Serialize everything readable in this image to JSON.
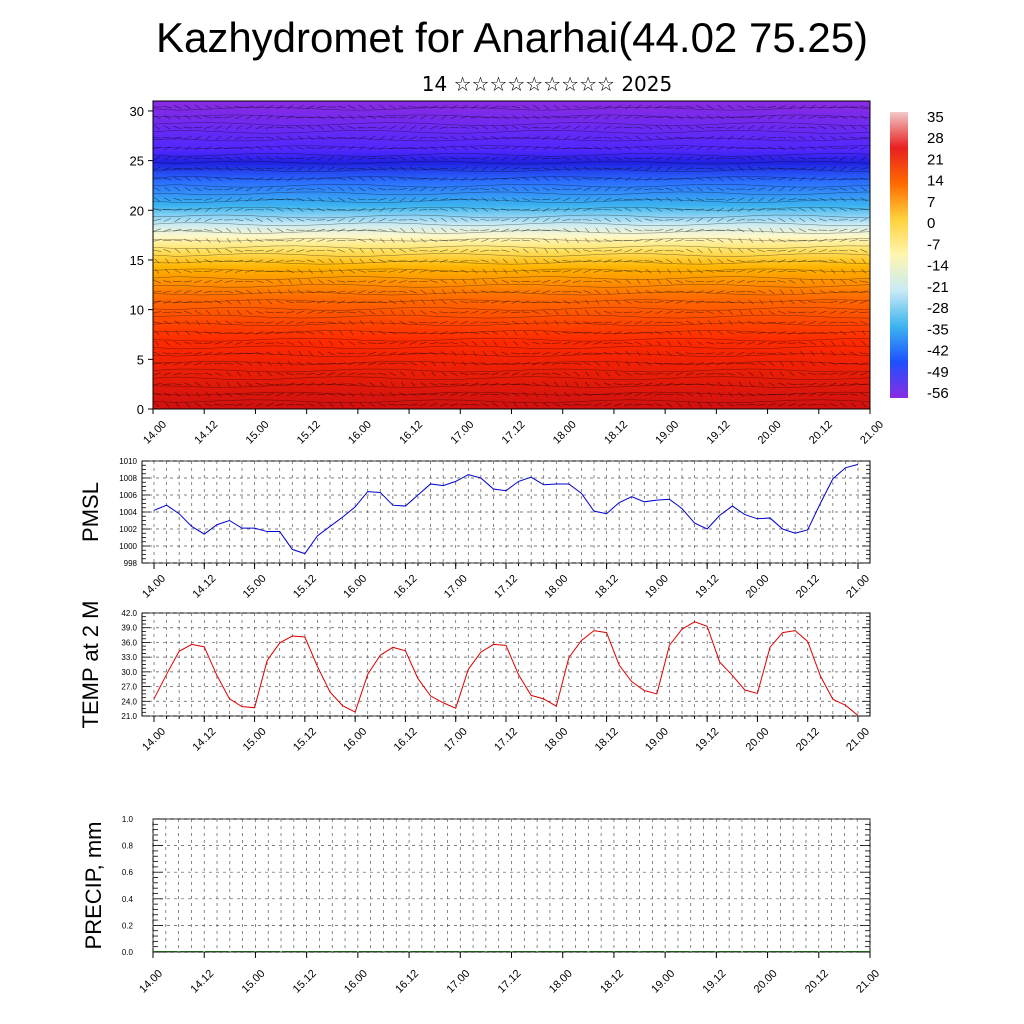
{
  "title": "Kazhydromet for Anarhai(44.02 75.25)",
  "subtitle": "14 ☆☆☆☆☆☆☆☆☆ 2025",
  "chart_data": [
    {
      "type": "heatmap",
      "name": "temperature-wind cross-section",
      "ylim": [
        0,
        31
      ],
      "yticks": [
        0,
        5,
        10,
        15,
        20,
        25,
        30
      ],
      "xticks": [
        "14.00",
        "14.12",
        "15.00",
        "15.12",
        "16.00",
        "16.12",
        "17.00",
        "17.12",
        "18.00",
        "18.12",
        "19.00",
        "19.12",
        "20.00",
        "20.12",
        "21.00"
      ],
      "colorbar_labels": [
        "35",
        "28",
        "21",
        "14",
        "7",
        "0",
        "-7",
        "-14",
        "-21",
        "-28",
        "-35",
        "-42",
        "-49",
        "-56"
      ],
      "colorbar_colors": [
        "#f2c8c8",
        "#e82020",
        "#ff6a00",
        "#ffd23c",
        "#fff6b0",
        "#c8eaf5",
        "#3cb4f0",
        "#1e50ff",
        "#8a2be2"
      ],
      "warm_peaks_x": [
        1.1,
        3.0,
        7.2,
        9.2,
        10.4,
        12.3
      ]
    },
    {
      "type": "line",
      "ylabel": "PMSL",
      "ylim": [
        998,
        1010
      ],
      "yticks": [
        "998",
        "1000",
        "1002",
        "1004",
        "1006",
        "1008",
        "1010"
      ],
      "xticks": [
        "14.00",
        "14.12",
        "15.00",
        "15.12",
        "16.00",
        "16.12",
        "17.00",
        "17.12",
        "18.00",
        "18.12",
        "19.00",
        "19.12",
        "20.00",
        "20.12",
        "21.00"
      ],
      "color": "#0000cc",
      "x": [
        0,
        0.25,
        0.5,
        0.75,
        1,
        1.25,
        1.5,
        1.75,
        2,
        2.25,
        2.5,
        2.75,
        3,
        3.25,
        3.5,
        3.75,
        4,
        4.25,
        4.5,
        4.75,
        5,
        5.25,
        5.5,
        5.75,
        6,
        6.25,
        6.5,
        6.75,
        7,
        7.25,
        7.5,
        7.75,
        8,
        8.25,
        8.5,
        8.75,
        9,
        9.25,
        9.5,
        9.75,
        10,
        10.25,
        10.5,
        10.75,
        11,
        11.25,
        11.5,
        11.75,
        12,
        12.25,
        12.5,
        12.75,
        13,
        13.25,
        13.5,
        13.75,
        14
      ],
      "values": [
        1004.2,
        1004.8,
        1003.8,
        1002.3,
        1001.4,
        1002.5,
        1003.0,
        1002.1,
        1002.1,
        1001.7,
        1001.7,
        999.6,
        999.1,
        1001.2,
        1002.3,
        1003.4,
        1004.6,
        1006.4,
        1006.3,
        1004.8,
        1004.7,
        1006.0,
        1007.3,
        1007.1,
        1007.6,
        1008.4,
        1008.0,
        1006.7,
        1006.5,
        1007.6,
        1008.1,
        1007.2,
        1007.3,
        1007.3,
        1006.2,
        1004.1,
        1003.8,
        1005.1,
        1005.8,
        1005.2,
        1005.4,
        1005.5,
        1004.4,
        1002.7,
        1002.0,
        1003.6,
        1004.7,
        1003.7,
        1003.2,
        1003.3,
        1002.0,
        1001.5,
        1001.9,
        1005.0,
        1007.9,
        1009.2,
        1009.6
      ]
    },
    {
      "type": "line",
      "ylabel": "TEMP at 2 M",
      "ylim": [
        21.0,
        42.0
      ],
      "yticks": [
        "21.0",
        "24.0",
        "27.0",
        "30.0",
        "33.0",
        "36.0",
        "39.0",
        "42.0"
      ],
      "xticks": [
        "14.00",
        "14.12",
        "15.00",
        "15.12",
        "16.00",
        "16.12",
        "17.00",
        "17.12",
        "18.00",
        "18.12",
        "19.00",
        "19.12",
        "20.00",
        "20.12",
        "21.00"
      ],
      "color": "#dd0000",
      "x": [
        0,
        0.25,
        0.5,
        0.75,
        1,
        1.25,
        1.5,
        1.75,
        2,
        2.25,
        2.5,
        2.75,
        3,
        3.25,
        3.5,
        3.75,
        4,
        4.25,
        4.5,
        4.75,
        5,
        5.25,
        5.5,
        5.75,
        6,
        6.25,
        6.5,
        6.75,
        7,
        7.25,
        7.5,
        7.75,
        8,
        8.25,
        8.5,
        8.75,
        9,
        9.25,
        9.5,
        9.75,
        10,
        10.25,
        10.5,
        10.75,
        11,
        11.25,
        11.5,
        11.75,
        12,
        12.25,
        12.5,
        12.75,
        13,
        13.25,
        13.5,
        13.75,
        14
      ],
      "values": [
        24.5,
        29.5,
        34.2,
        35.6,
        35.1,
        29.3,
        24.5,
        22.9,
        22.7,
        32.3,
        35.9,
        37.3,
        37.1,
        31.1,
        25.9,
        23.1,
        21.8,
        29.5,
        33.4,
        35.0,
        34.3,
        28.6,
        25.1,
        23.7,
        22.6,
        30.5,
        34.0,
        35.6,
        35.4,
        29.4,
        25.2,
        24.5,
        23.0,
        32.9,
        36.4,
        38.4,
        38.0,
        31.4,
        28.0,
        26.2,
        25.5,
        35.4,
        38.7,
        40.2,
        39.3,
        32.0,
        29.3,
        26.3,
        25.6,
        35.0,
        38.0,
        38.4,
        36.2,
        29.2,
        24.4,
        23.2,
        21.1
      ]
    },
    {
      "type": "bar",
      "ylabel": "PRECIP, mm",
      "ylim": [
        0.0,
        1.0
      ],
      "yticks": [
        "0.0",
        "0.2",
        "0.4",
        "0.6",
        "0.8",
        "1.0"
      ],
      "xticks": [
        "14.00",
        "14.12",
        "15.00",
        "15.12",
        "16.00",
        "16.12",
        "17.00",
        "17.12",
        "18.00",
        "18.12",
        "19.00",
        "19.12",
        "20.00",
        "20.12",
        "21.00"
      ],
      "color": "#1a5c1a",
      "values": [
        0,
        0,
        0,
        0,
        0,
        0,
        0,
        0,
        0,
        0,
        0,
        0,
        0,
        0,
        0,
        0,
        0,
        0,
        0,
        0,
        0,
        0,
        0,
        0,
        0,
        0,
        0,
        0
      ]
    }
  ]
}
